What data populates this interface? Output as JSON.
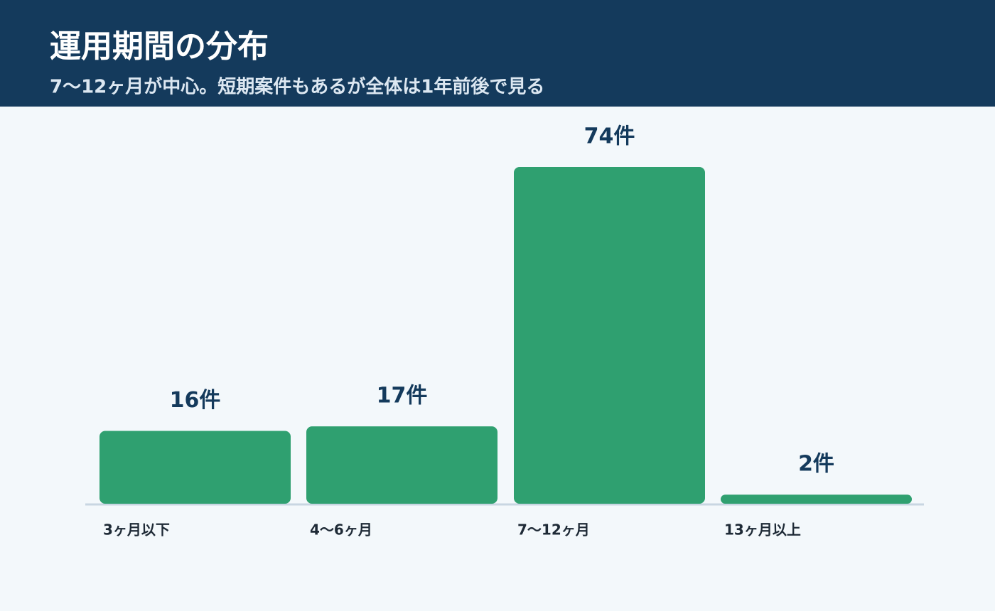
{
  "chart_data": {
    "type": "bar",
    "title": "運用期間の分布",
    "subtitle": "7〜12ヶ月が中心。短期案件もあるが全体は1年前後で見る",
    "categories": [
      "3ヶ月以下",
      "4〜6ヶ月",
      "7〜12ヶ月",
      "13ヶ月以上"
    ],
    "values": [
      16,
      17,
      74,
      2
    ],
    "value_labels": [
      "16件",
      "17件",
      "74件",
      "2件"
    ],
    "color": "#2fa070"
  }
}
